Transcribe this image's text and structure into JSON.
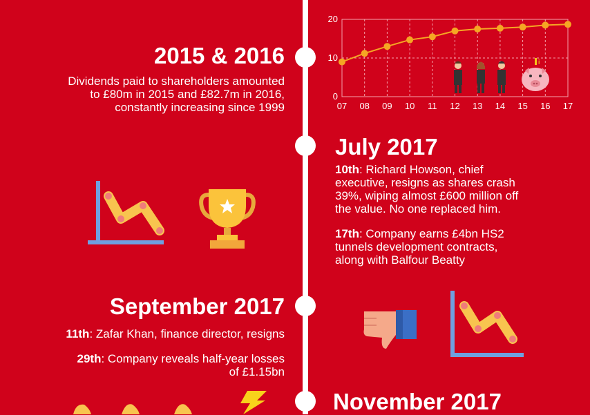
{
  "sections": {
    "s2015": {
      "heading": "2015 & 2016",
      "text": [
        "Dividends paid to shareholders amounted",
        "to £80m in 2015 and £82.7m in 2016,",
        "constantly increasing since 1999"
      ]
    },
    "july": {
      "heading": "July 2017",
      "e1_day": "10th",
      "e1_text": ": Richard Howson, chief",
      "e1_lines": [
        "executive, resigns as shares crash",
        "39%, wiping almost £600 million off",
        "the value. No one replaced him."
      ],
      "e2_day": "17th",
      "e2_text": ": Company earns £4bn HS2",
      "e2_lines": [
        "tunnels development contracts,",
        "along with Balfour Beatty"
      ]
    },
    "sept": {
      "heading": "September 2017",
      "e1_day": "11th",
      "e1_text": ": Zafar Khan, finance director, resigns",
      "e2_day": "29th",
      "e2_text": ": Company reveals half-year losses",
      "e2_line2": "of £1.15bn"
    },
    "nov": {
      "heading": "November 2017"
    }
  },
  "chart_data": {
    "type": "line",
    "x": [
      "07",
      "08",
      "09",
      "10",
      "11",
      "12",
      "13",
      "14",
      "15",
      "16",
      "17"
    ],
    "values": [
      9,
      11.2,
      13,
      14.7,
      15.5,
      17,
      17.5,
      17.7,
      18,
      18.5,
      18.7
    ],
    "yticks": [
      "0",
      "10",
      "20"
    ],
    "ylim": [
      0,
      20
    ],
    "line_color": "#f5a623"
  },
  "colors": {
    "background": "#d0021b",
    "accent": "#f5a623",
    "icon_blue": "#6fa0e0"
  }
}
